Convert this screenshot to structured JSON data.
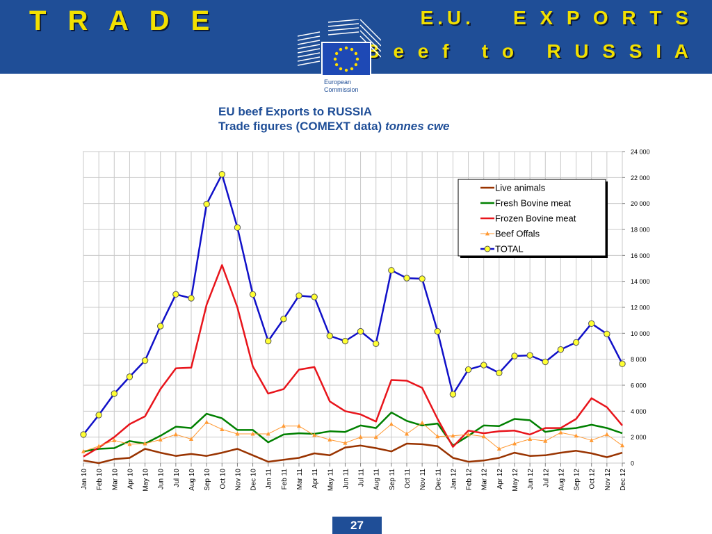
{
  "header": {
    "left_title": "T R A D E",
    "right_title_line1": "E.U.    E X P O R T S",
    "right_title_line2": "B e e f   t o   R U S S I A",
    "logo_line1": "European",
    "logo_line2": "Commission"
  },
  "chart_title": {
    "line1": "EU beef Exports to RUSSIA",
    "line2_prefix": "Trade figures (COMEXT data) ",
    "line2_italic": "tonnes cwe"
  },
  "page_number": "27",
  "colors": {
    "banner": "#1f4e97",
    "title_yellow": "#f2e000",
    "live_animals": "#993300",
    "fresh_bovine": "#008000",
    "frozen_bovine": "#e8141b",
    "beef_offals": "#ff9933",
    "total": "#1010c8",
    "marker_fill": "#ffff33"
  },
  "chart_data": {
    "type": "line",
    "title": "EU beef Exports to RUSSIA",
    "ylabel": "tonnes cwe",
    "xlabel": "",
    "ylim": [
      0,
      24000
    ],
    "yticks": [
      0,
      2000,
      4000,
      6000,
      8000,
      10000,
      12000,
      14000,
      16000,
      18000,
      20000,
      22000,
      24000
    ],
    "ytick_labels": [
      "0",
      "2 000",
      "4 000",
      "6 000",
      "8 000",
      "10 000",
      "12 000",
      "14 000",
      "16 000",
      "18 000",
      "20 000",
      "22 000",
      "24 000"
    ],
    "legend_position": "top-right",
    "grid": true,
    "categories": [
      "Jan 10",
      "Feb 10",
      "Mar 10",
      "Apr 10",
      "May 10",
      "Jun 10",
      "Jul 10",
      "Aug 10",
      "Sep 10",
      "Oct 10",
      "Nov 10",
      "Dec 10",
      "Jan 11",
      "Feb 11",
      "Mar 11",
      "Apr 11",
      "May 11",
      "Jun 11",
      "Jul 11",
      "Aug 11",
      "Sep 11",
      "Oct 11",
      "Nov 11",
      "Dec 11",
      "Jan 12",
      "Feb 12",
      "Mar 12",
      "Apr 12",
      "May 12",
      "Jun 12",
      "Jul 12",
      "Aug 12",
      "Sep 12",
      "Oct 12",
      "Nov 12",
      "Dec 12"
    ],
    "series": [
      {
        "name": "Live animals",
        "color": "#993300",
        "marker": "none",
        "values": [
          200,
          0,
          300,
          400,
          1100,
          800,
          550,
          700,
          550,
          800,
          1100,
          600,
          100,
          250,
          400,
          750,
          600,
          1200,
          1350,
          1150,
          900,
          1500,
          1450,
          1300,
          400,
          100,
          200,
          400,
          800,
          550,
          600,
          800,
          950,
          750,
          450,
          800
        ]
      },
      {
        "name": "Fresh Bovine meat",
        "color": "#008000",
        "marker": "none",
        "values": [
          900,
          1100,
          1150,
          1700,
          1500,
          2100,
          2800,
          2700,
          3800,
          3450,
          2550,
          2550,
          1600,
          2200,
          2300,
          2250,
          2450,
          2400,
          2900,
          2700,
          3900,
          3250,
          2900,
          3050,
          1350,
          2100,
          2900,
          2850,
          3400,
          3300,
          2400,
          2600,
          2700,
          2950,
          2700,
          2300
        ]
      },
      {
        "name": "Frozen Bovine meat",
        "color": "#e8141b",
        "marker": "none",
        "values": [
          500,
          1200,
          2000,
          3000,
          3600,
          5700,
          7300,
          7350,
          12200,
          15250,
          12000,
          7450,
          5350,
          5700,
          7200,
          7400,
          4750,
          4000,
          3750,
          3200,
          6400,
          6350,
          5800,
          3400,
          1250,
          2500,
          2300,
          2450,
          2500,
          2200,
          2700,
          2700,
          3400,
          5000,
          4300,
          2900
        ]
      },
      {
        "name": "Beef Offals",
        "color": "#ff9933",
        "marker": "triangle",
        "values": [
          900,
          1300,
          1750,
          1450,
          1500,
          1800,
          2200,
          1850,
          3150,
          2600,
          2250,
          2250,
          2250,
          2850,
          2850,
          2150,
          1800,
          1550,
          2000,
          2000,
          3000,
          2250,
          3100,
          2050,
          2100,
          2200,
          2050,
          1100,
          1500,
          1850,
          1700,
          2350,
          2100,
          1750,
          2200,
          1350
        ]
      },
      {
        "name": "TOTAL",
        "color": "#1010c8",
        "marker": "circle",
        "values": [
          2200,
          3700,
          5350,
          6650,
          7900,
          10550,
          13000,
          12700,
          19950,
          22250,
          18150,
          13000,
          9400,
          11100,
          12900,
          12800,
          9800,
          9400,
          10150,
          9200,
          14850,
          14250,
          14200,
          10150,
          5300,
          7200,
          7550,
          6950,
          8250,
          8300,
          7800,
          8750,
          9300,
          10750,
          9950,
          7650
        ]
      }
    ]
  }
}
